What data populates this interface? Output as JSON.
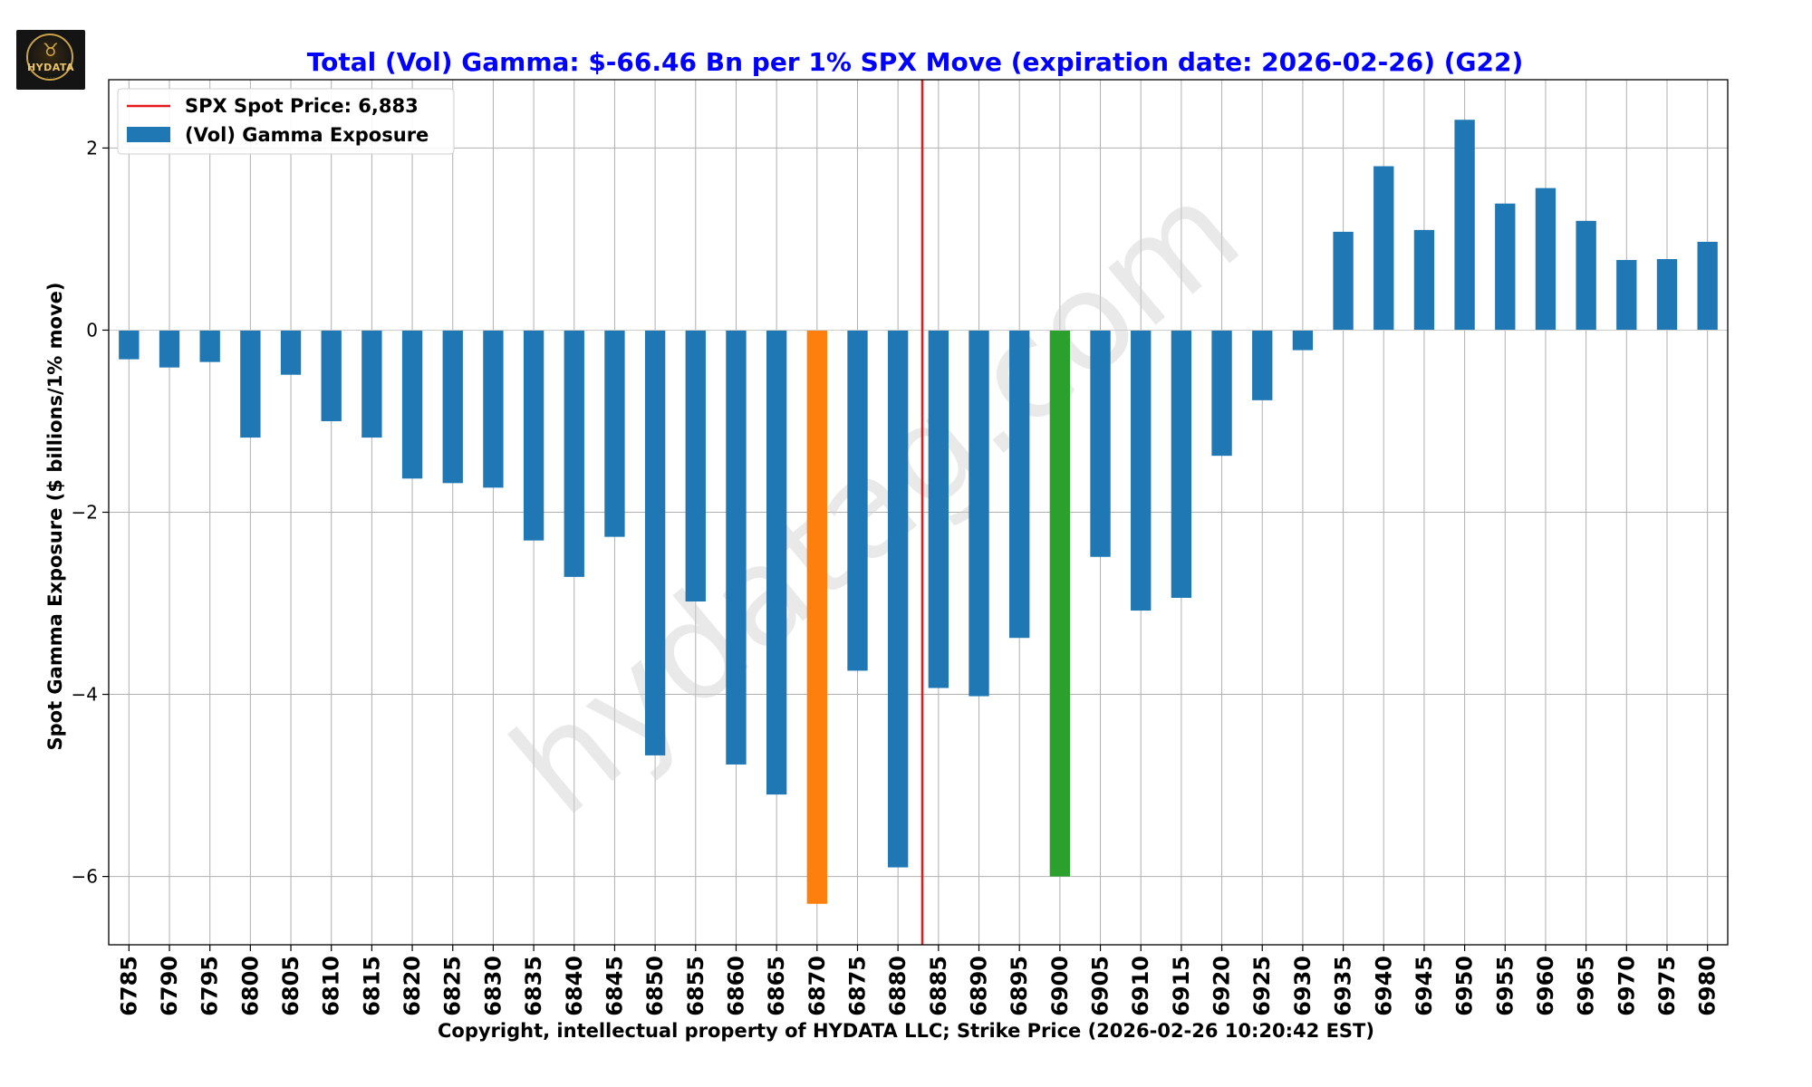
{
  "logo": {
    "text": "HYDATA",
    "subtext": "· · ·"
  },
  "watermark": "hydatag.com",
  "chart_data": {
    "type": "bar",
    "title": "Total (Vol) Gamma: $-66.46 Bn per 1% SPX Move (expiration date: 2026-02-26) (G22)",
    "xlabel": "Copyright, intellectual property of HYDATA LLC; Strike Price (2026-02-26 10:20:42 EST)",
    "ylabel": "Spot Gamma Exposure ($ billions/1% move)",
    "ylim": [
      -6.75,
      2.75
    ],
    "yticks": [
      2,
      0,
      -2,
      -4,
      -6
    ],
    "ytick_labels": [
      "2",
      "0",
      "−2",
      "−4",
      "−6"
    ],
    "grid": true,
    "legend_position": "upper-left",
    "categories": [
      "6785",
      "6790",
      "6795",
      "6800",
      "6805",
      "6810",
      "6815",
      "6820",
      "6825",
      "6830",
      "6835",
      "6840",
      "6845",
      "6850",
      "6855",
      "6860",
      "6865",
      "6870",
      "6875",
      "6880",
      "6885",
      "6890",
      "6895",
      "6900",
      "6905",
      "6910",
      "6915",
      "6920",
      "6925",
      "6930",
      "6935",
      "6940",
      "6945",
      "6950",
      "6955",
      "6960",
      "6965",
      "6970",
      "6975",
      "6980"
    ],
    "series": [
      {
        "name": "(Vol) Gamma Exposure",
        "color": "#1f77b4",
        "values": [
          -0.32,
          -0.41,
          -0.35,
          -1.18,
          -0.49,
          -1.0,
          -1.18,
          -1.63,
          -1.68,
          -1.73,
          -2.31,
          -2.71,
          -2.27,
          -4.67,
          -2.98,
          -4.77,
          -5.1,
          -6.3,
          -3.74,
          -5.9,
          -3.93,
          -4.02,
          -3.38,
          -6.0,
          -2.49,
          -3.08,
          -2.94,
          -1.38,
          -0.77,
          -0.22,
          1.08,
          1.8,
          1.1,
          2.31,
          1.39,
          1.56,
          1.2,
          0.77,
          0.78,
          0.97
        ]
      }
    ],
    "highlights": [
      {
        "category": "6870",
        "color": "#ff7f0e"
      },
      {
        "category": "6900",
        "color": "#2ca02c"
      }
    ],
    "spot_line": {
      "label": "SPX Spot Price: 6,883",
      "value": 6883,
      "color": "#e31a1c"
    },
    "title_color": "#0000ff"
  }
}
